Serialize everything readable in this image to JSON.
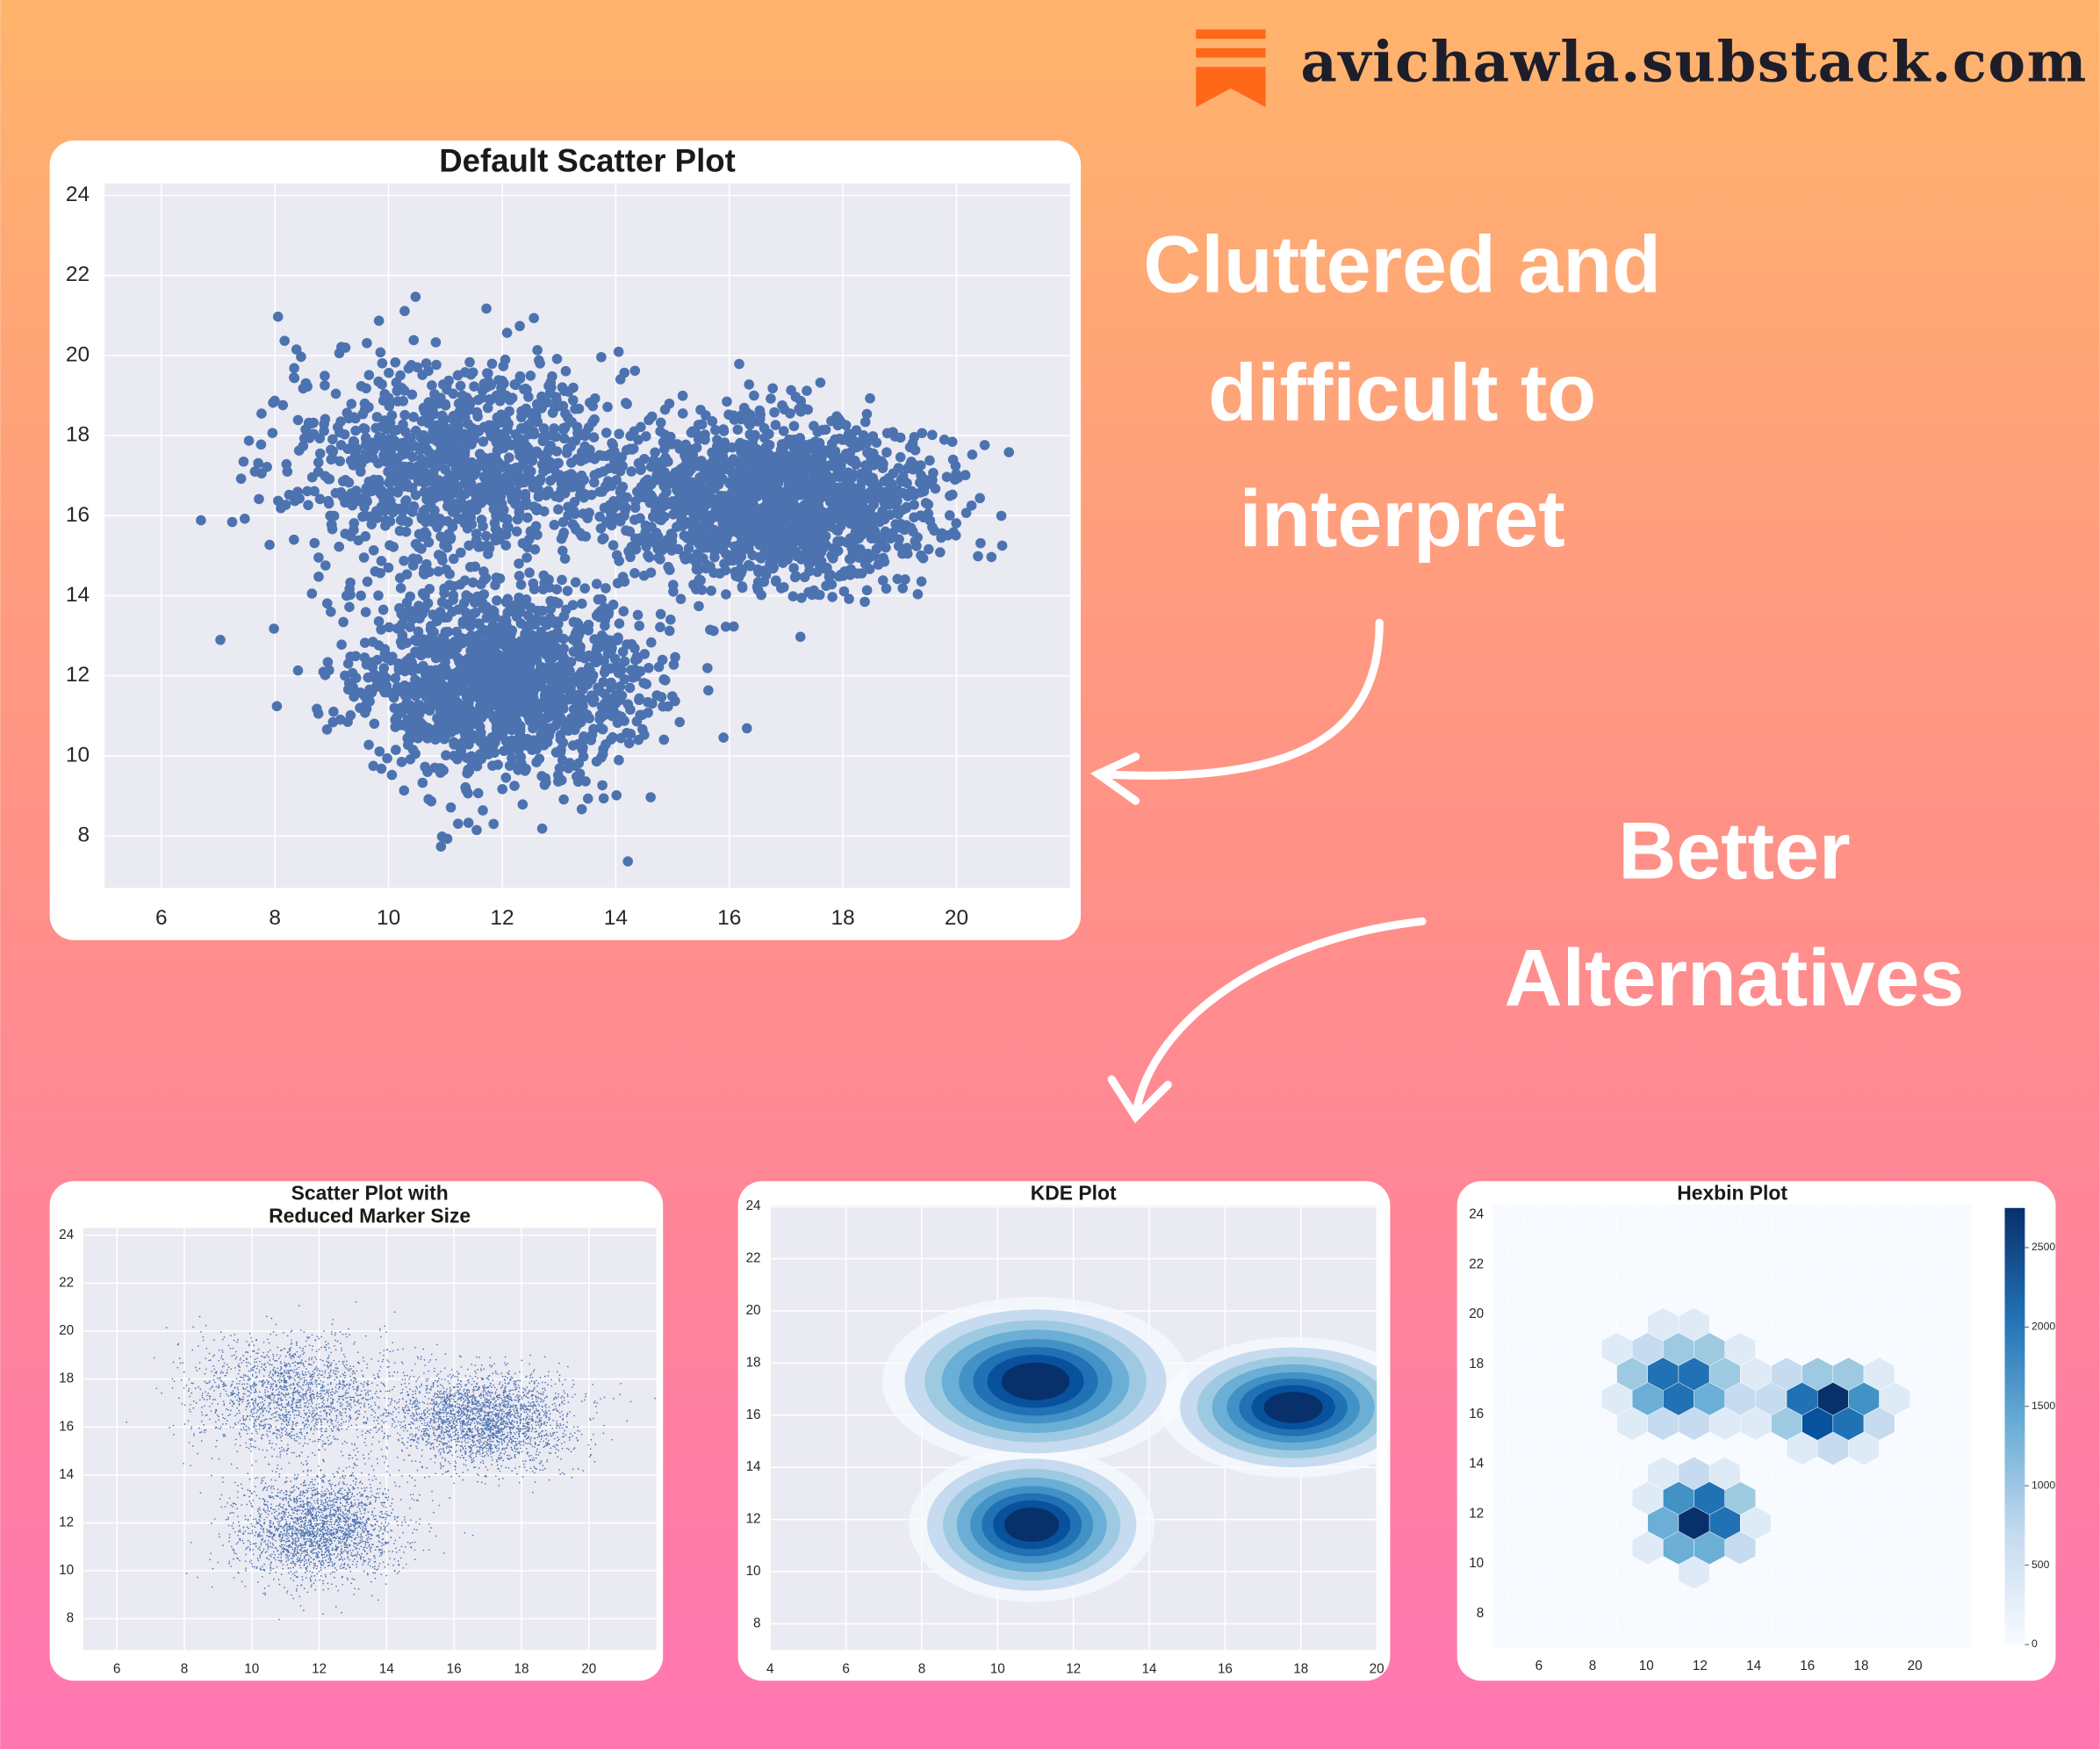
{
  "brand": "avichawla.substack.com",
  "callout_top": [
    "Cluttered and",
    "difficult to",
    "interpret"
  ],
  "callout_bottom": [
    "Better",
    "Alternatives"
  ],
  "chart_data": [
    {
      "type": "scatter",
      "marker": "large",
      "title": "Default Scatter Plot",
      "color": "#4c72b0",
      "xlim": [
        5,
        22
      ],
      "ylim": [
        6.7,
        24.3
      ],
      "xticks": [
        6,
        8,
        10,
        12,
        14,
        16,
        18,
        20
      ],
      "yticks": [
        8,
        10,
        12,
        14,
        16,
        18,
        20,
        22,
        24
      ],
      "grid": true
    },
    {
      "type": "scatter",
      "marker": "small",
      "title": [
        "Scatter Plot with",
        "Reduced Marker Size"
      ],
      "color": "#4c72b0",
      "xlim": [
        5,
        22
      ],
      "ylim": [
        6.7,
        24.3
      ],
      "xticks": [
        6,
        8,
        10,
        12,
        14,
        16,
        18,
        20
      ],
      "yticks": [
        8,
        10,
        12,
        14,
        16,
        18,
        20,
        22,
        24
      ],
      "grid": true
    },
    {
      "type": "kde",
      "title": "KDE Plot",
      "colormap": "Blues",
      "xlim": [
        4,
        20
      ],
      "ylim": [
        7,
        24.05
      ],
      "xticks": [
        4,
        6,
        8,
        10,
        12,
        14,
        16,
        18,
        20
      ],
      "yticks": [
        8,
        10,
        12,
        14,
        16,
        18,
        20,
        22,
        24
      ],
      "grid": true
    },
    {
      "type": "hexbin",
      "title": "Hexbin Plot",
      "colormap": "Blues",
      "xlim": [
        4.3,
        22.1
      ],
      "ylim": [
        6.66,
        24.38
      ],
      "xticks": [
        6,
        8,
        10,
        12,
        14,
        16,
        18,
        20
      ],
      "yticks": [
        8,
        10,
        12,
        14,
        16,
        18,
        20,
        22,
        24
      ],
      "grid": true,
      "clim": [
        0,
        2750
      ],
      "colorbar_ticks": [
        0,
        500,
        1000,
        1500,
        2000,
        2500
      ]
    }
  ]
}
